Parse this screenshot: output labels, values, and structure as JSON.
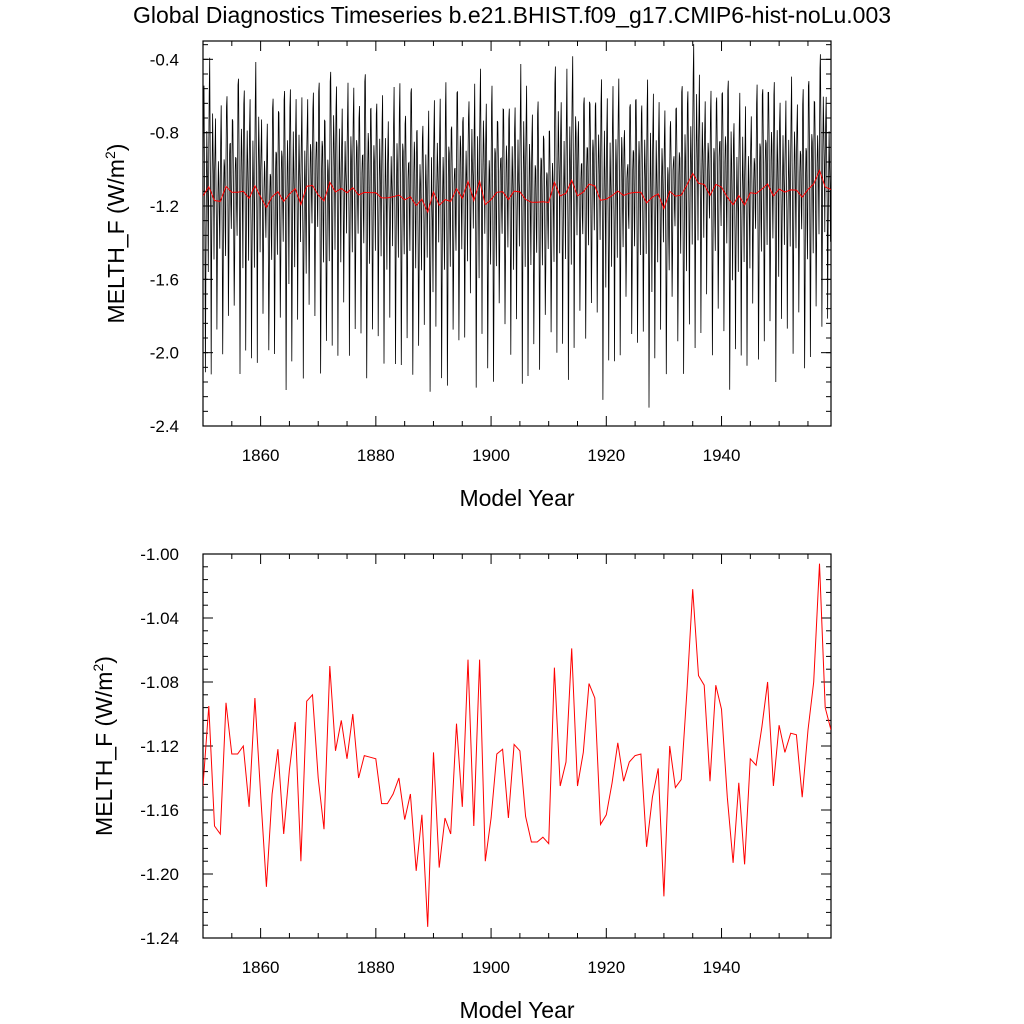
{
  "title": "Global Diagnostics Timeseries b.e21.BHIST.f09_g17.CMIP6-hist-noLu.003",
  "chart_data": [
    {
      "type": "line",
      "xlabel": "Model Year",
      "ylabel": "MELTH_F (W/m",
      "ylabel_superscript": "2",
      "ylabel_suffix": ")",
      "xlim": [
        1850,
        1959
      ],
      "ylim": [
        -2.4,
        -0.3
      ],
      "xticks": [
        1860,
        1880,
        1900,
        1920,
        1940
      ],
      "yticks": [
        -0.4,
        -0.8,
        -1.2,
        -1.6,
        -2.0,
        -2.4
      ],
      "ytick_labels": [
        "-0.4",
        "-0.8",
        "-1.2",
        "-1.6",
        "-2.0",
        "-2.4"
      ],
      "series": [
        {
          "role": "monthly",
          "color": "#000000",
          "x_start": 1850,
          "step": "month",
          "annual_cycle": [
            -1.0,
            -0.7,
            -0.6,
            -0.95,
            -1.3,
            -1.95,
            -1.5,
            -1.05,
            -0.85,
            -0.95,
            -1.2,
            -1.45
          ]
        },
        {
          "role": "annual-mean",
          "color": "#ff0000",
          "x_start": 1850,
          "step": "year",
          "values": "annual"
        }
      ]
    },
    {
      "type": "line",
      "xlabel": "Model Year",
      "ylabel": "MELTH_F (W/m",
      "ylabel_superscript": "2",
      "ylabel_suffix": ")",
      "xlim": [
        1850,
        1959
      ],
      "ylim": [
        -1.24,
        -1.0
      ],
      "xticks": [
        1860,
        1880,
        1900,
        1920,
        1940
      ],
      "yticks": [
        -1.0,
        -1.04,
        -1.08,
        -1.12,
        -1.16,
        -1.2,
        -1.24
      ],
      "ytick_labels": [
        "-1.00",
        "-1.04",
        "-1.08",
        "-1.12",
        "-1.16",
        "-1.20",
        "-1.24"
      ],
      "series": [
        {
          "role": "annual-mean",
          "color": "#ff0000",
          "x": [
            1850,
            1851,
            1852,
            1853,
            1854,
            1855,
            1856,
            1857,
            1858,
            1859,
            1860,
            1861,
            1862,
            1863,
            1864,
            1865,
            1866,
            1867,
            1868,
            1869,
            1870,
            1871,
            1872,
            1873,
            1874,
            1875,
            1876,
            1877,
            1878,
            1879,
            1880,
            1881,
            1882,
            1883,
            1884,
            1885,
            1886,
            1887,
            1888,
            1889,
            1890,
            1891,
            1892,
            1893,
            1894,
            1895,
            1896,
            1897,
            1898,
            1899,
            1900,
            1901,
            1902,
            1903,
            1904,
            1905,
            1906,
            1907,
            1908,
            1909,
            1910,
            1911,
            1912,
            1913,
            1914,
            1915,
            1916,
            1917,
            1918,
            1919,
            1920,
            1921,
            1922,
            1923,
            1924,
            1925,
            1926,
            1927,
            1928,
            1929,
            1930,
            1931,
            1932,
            1933,
            1934,
            1935,
            1936,
            1937,
            1938,
            1939,
            1940,
            1941,
            1942,
            1943,
            1944,
            1945,
            1946,
            1947,
            1948,
            1949,
            1950,
            1951,
            1952,
            1953,
            1954,
            1955,
            1956,
            1957,
            1958,
            1959
          ],
          "values": [
            -1.145,
            -1.095,
            -1.17,
            -1.175,
            -1.093,
            -1.125,
            -1.125,
            -1.12,
            -1.158,
            -1.09,
            -1.15,
            -1.208,
            -1.15,
            -1.122,
            -1.175,
            -1.135,
            -1.105,
            -1.192,
            -1.092,
            -1.088,
            -1.14,
            -1.172,
            -1.07,
            -1.123,
            -1.104,
            -1.128,
            -1.1,
            -1.14,
            -1.126,
            -1.127,
            -1.128,
            -1.156,
            -1.156,
            -1.15,
            -1.14,
            -1.166,
            -1.15,
            -1.198,
            -1.163,
            -1.233,
            -1.124,
            -1.196,
            -1.165,
            -1.175,
            -1.106,
            -1.158,
            -1.066,
            -1.17,
            -1.066,
            -1.192,
            -1.165,
            -1.125,
            -1.122,
            -1.165,
            -1.119,
            -1.123,
            -1.164,
            -1.18,
            -1.18,
            -1.177,
            -1.181,
            -1.071,
            -1.145,
            -1.13,
            -1.059,
            -1.145,
            -1.124,
            -1.081,
            -1.09,
            -1.169,
            -1.163,
            -1.143,
            -1.118,
            -1.142,
            -1.13,
            -1.126,
            -1.125,
            -1.183,
            -1.152,
            -1.134,
            -1.214,
            -1.12,
            -1.146,
            -1.141,
            -1.085,
            -1.022,
            -1.076,
            -1.082,
            -1.142,
            -1.082,
            -1.097,
            -1.152,
            -1.193,
            -1.143,
            -1.194,
            -1.128,
            -1.132,
            -1.108,
            -1.08,
            -1.145,
            -1.107,
            -1.124,
            -1.112,
            -1.113,
            -1.152,
            -1.11,
            -1.08,
            -1.006,
            -1.096,
            -1.11
          ]
        }
      ]
    }
  ]
}
